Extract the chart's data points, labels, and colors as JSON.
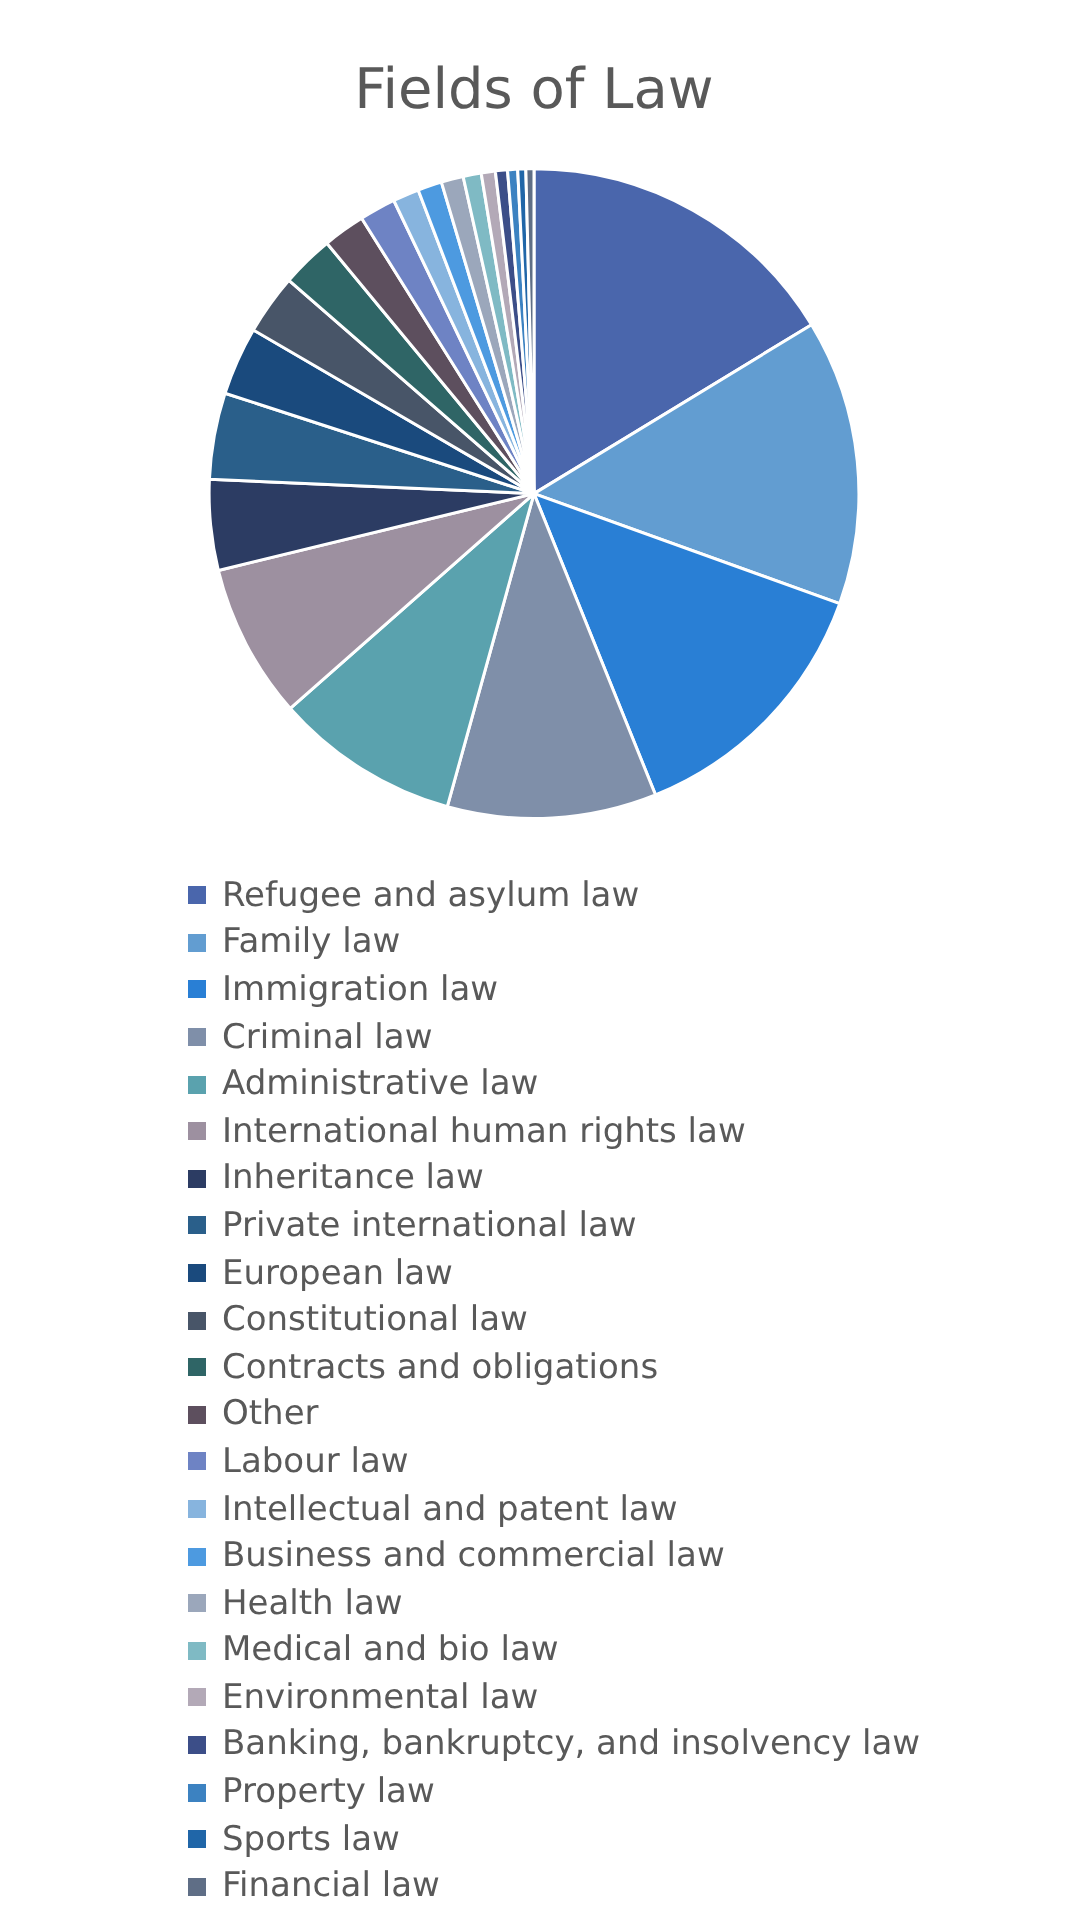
{
  "chart_data": {
    "type": "pie",
    "title": "Fields of Law",
    "categories": [
      "Refugee and asylum law",
      "Family law",
      "Immigration law",
      "Criminal law",
      "Administrative law",
      "International human rights law",
      "Inheritance law",
      "Private international law",
      "European law",
      "Constitutional law",
      "Contracts and obligations",
      "Other",
      "Labour law",
      "Intellectual and patent law",
      "Business and commercial law",
      "Health law",
      "Medical and bio law",
      "Environmental law",
      "Banking, bankruptcy, and insolvency law",
      "Property law",
      "Sports law",
      "Financial law"
    ],
    "values": [
      16.3,
      14.2,
      13.4,
      10.4,
      9.2,
      7.7,
      4.5,
      4.3,
      3.4,
      3.0,
      2.6,
      2.1,
      1.8,
      1.3,
      1.2,
      1.1,
      0.9,
      0.7,
      0.6,
      0.5,
      0.4,
      0.4
    ],
    "colors": [
      "#4a66ac",
      "#629dd1",
      "#297fd5",
      "#7f8fa9",
      "#5aa2ae",
      "#9d90a0",
      "#2c3c63",
      "#2a5f8a",
      "#1a4a7d",
      "#485568",
      "#2f6566",
      "#5d4f5e",
      "#6e83c4",
      "#87b4de",
      "#4d9ae0",
      "#9ba7bb",
      "#7fbac4",
      "#b3a9b7",
      "#3c4e88",
      "#3c82c1",
      "#2066a8",
      "#5f6e86"
    ],
    "legend": "bottom"
  }
}
